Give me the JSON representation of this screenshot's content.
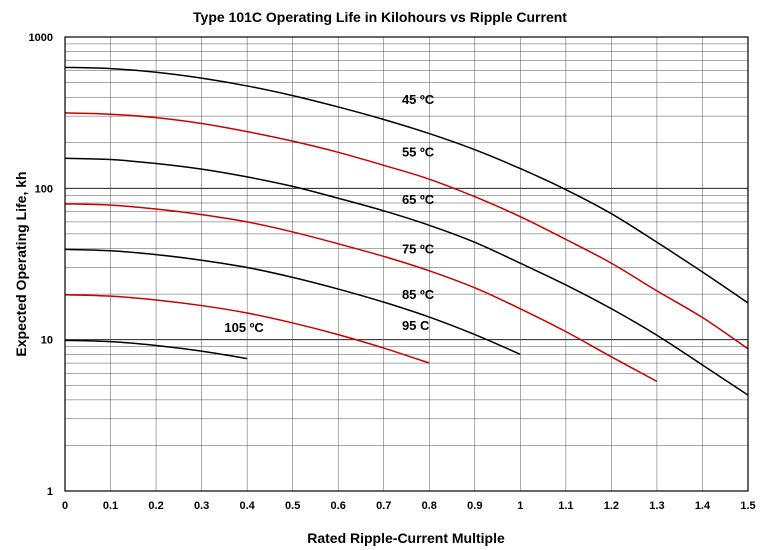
{
  "chart_data": {
    "type": "line",
    "title": "Type 101C Operating Life in Kilohours vs Ripple Current",
    "xlabel": "Rated Ripple-Current Multiple",
    "ylabel": "Expected Operating Life, kh",
    "xlim": [
      0,
      1.5
    ],
    "ylim": [
      1,
      1000
    ],
    "yscale": "log",
    "grid": true,
    "x_ticks": [
      0,
      0.1,
      0.2,
      0.3,
      0.4,
      0.5,
      0.6,
      0.7,
      0.8,
      0.9,
      1,
      1.1,
      1.2,
      1.3,
      1.4,
      1.5
    ],
    "x_tick_labels": [
      "0",
      "0.1",
      "0.2",
      "0.3",
      "0.4",
      "0.5",
      "0.6",
      "0.7",
      "0.8",
      "0.9",
      "1",
      "1.1",
      "1.2",
      "1.3",
      "1.4",
      "1.5"
    ],
    "y_ticks": [
      1,
      10,
      100,
      1000
    ],
    "y_tick_labels": [
      "1",
      "10",
      "100",
      "1000"
    ],
    "series": [
      {
        "name": "45 ºC",
        "color": "#000000",
        "x": [
          0,
          0.1,
          0.2,
          0.3,
          0.4,
          0.5,
          0.6,
          0.7,
          0.8,
          0.9,
          1.0,
          1.1,
          1.2,
          1.3,
          1.4,
          1.5
        ],
        "y": [
          630,
          618,
          585,
          535,
          475,
          410,
          345,
          285,
          230,
          180,
          135,
          98,
          68,
          44,
          28,
          17.5
        ]
      },
      {
        "name": "55 ºC",
        "color": "#cc0000",
        "x": [
          0,
          0.1,
          0.2,
          0.3,
          0.4,
          0.5,
          0.6,
          0.7,
          0.8,
          0.9,
          1.0,
          1.1,
          1.2,
          1.3,
          1.4,
          1.5
        ],
        "y": [
          315,
          309,
          293,
          268,
          237,
          205,
          173,
          142,
          115,
          88,
          65,
          46,
          32,
          21,
          14,
          8.7
        ]
      },
      {
        "name": "65 ºC",
        "color": "#000000",
        "x": [
          0,
          0.1,
          0.2,
          0.3,
          0.4,
          0.5,
          0.6,
          0.7,
          0.8,
          0.9,
          1.0,
          1.1,
          1.2,
          1.3,
          1.4,
          1.5
        ],
        "y": [
          158,
          155,
          146,
          134,
          119,
          103,
          86,
          71,
          57,
          44,
          32,
          23,
          16,
          10.7,
          6.8,
          4.3
        ]
      },
      {
        "name": "75 ºC",
        "color": "#cc0000",
        "x": [
          0,
          0.1,
          0.2,
          0.3,
          0.4,
          0.5,
          0.6,
          0.7,
          0.8,
          0.9,
          1.0,
          1.1,
          1.2,
          1.3
        ],
        "y": [
          79,
          77.5,
          73,
          67,
          60,
          51.5,
          43,
          35.5,
          28.5,
          22,
          16,
          11.3,
          7.7,
          5.3
        ]
      },
      {
        "name": "85 ºC",
        "color": "#000000",
        "x": [
          0,
          0.1,
          0.2,
          0.3,
          0.4,
          0.5,
          0.6,
          0.7,
          0.8,
          0.9,
          1.0
        ],
        "y": [
          39.5,
          38.7,
          36.5,
          33.5,
          30,
          25.8,
          21.6,
          17.7,
          14.1,
          10.8,
          8.0
        ]
      },
      {
        "name": "95  C",
        "color": "#cc0000",
        "x": [
          0,
          0.1,
          0.2,
          0.3,
          0.4,
          0.5,
          0.6,
          0.7,
          0.8
        ],
        "y": [
          19.8,
          19.4,
          18.3,
          16.8,
          15,
          12.9,
          10.8,
          8.8,
          7.0
        ]
      },
      {
        "name": "105 ºC",
        "color": "#000000",
        "x": [
          0,
          0.1,
          0.2,
          0.3,
          0.4
        ],
        "y": [
          9.9,
          9.7,
          9.15,
          8.4,
          7.5
        ]
      }
    ],
    "annotations": [
      {
        "text": "45 ºC",
        "x": 0.74,
        "y": 360
      },
      {
        "text": "55 ºC",
        "x": 0.74,
        "y": 162
      },
      {
        "text": "65 ºC",
        "x": 0.74,
        "y": 79
      },
      {
        "text": "75 ºC",
        "x": 0.74,
        "y": 37
      },
      {
        "text": "85 ºC",
        "x": 0.74,
        "y": 18.5
      },
      {
        "text": "95  C",
        "x": 0.74,
        "y": 11.6
      },
      {
        "text": "105 ºC",
        "x": 0.35,
        "y": 11.2
      }
    ]
  }
}
